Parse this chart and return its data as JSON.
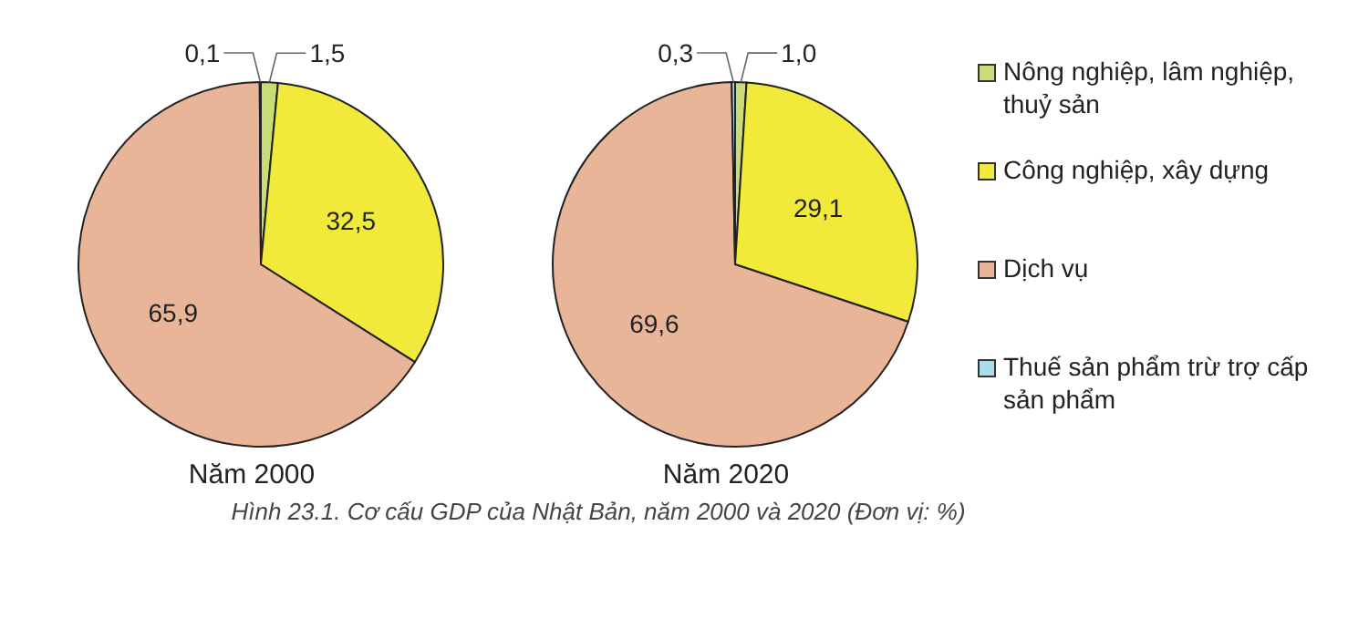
{
  "chart_data": [
    {
      "type": "pie",
      "title": "Năm 2000",
      "categories": [
        null,
        null,
        null,
        null
      ],
      "values": [
        1.5,
        32.5,
        65.9,
        0.1
      ],
      "value_labels": [
        "1,5",
        "32,5",
        "65,9",
        "0,1"
      ],
      "colors": [
        "#c8dc78",
        "#f2ea3a",
        "#e8b598",
        "#a8dce8"
      ],
      "legend": false
    },
    {
      "type": "pie",
      "title": "Năm 2020",
      "categories": [
        "Nông nghiệp, lâm nghiệp, thuỷ sản",
        "Công nghiệp, xây dựng",
        "Dịch vụ",
        "Thuế sản phẩm trừ trợ cấp sản phẩm"
      ],
      "values": [
        1.0,
        29.1,
        69.6,
        0.3
      ],
      "value_labels": [
        "1,0",
        "29,1",
        "69,6",
        "0,3"
      ],
      "colors": [
        "#c8dc78",
        "#f2ea3a",
        "#e8b598",
        "#a8dce8"
      ],
      "legend": "right",
      "annotations": [
        "Hình 23.1. Cơ cấu GDP của Nhật Bản, năm 2000 và 2020 (Đơn vị: %)"
      ]
    }
  ]
}
